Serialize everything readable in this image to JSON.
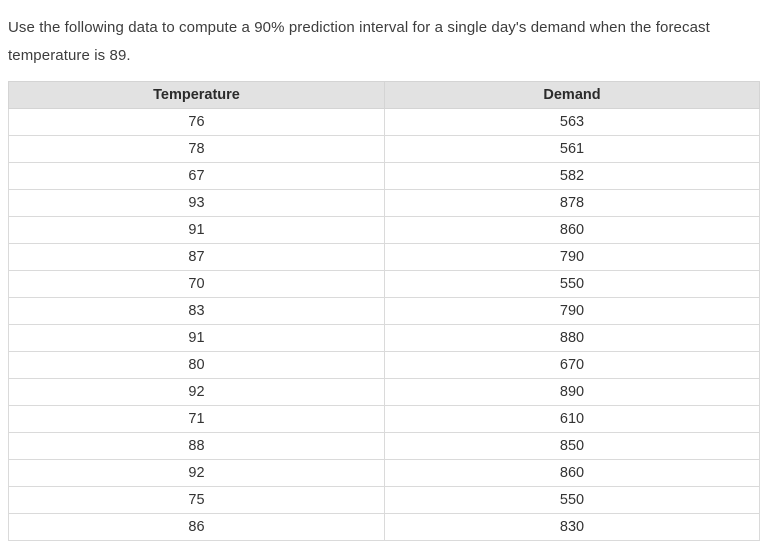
{
  "question": {
    "text": "Use the following data to compute a 90% prediction interval for a single day's demand when the forecast temperature is 89.",
    "prediction_interval_confidence": "90%",
    "forecast_temperature": "89"
  },
  "table": {
    "columns": [
      "Temperature",
      "Demand"
    ],
    "rows": [
      [
        76,
        563
      ],
      [
        78,
        561
      ],
      [
        67,
        582
      ],
      [
        93,
        878
      ],
      [
        91,
        860
      ],
      [
        87,
        790
      ],
      [
        70,
        550
      ],
      [
        83,
        790
      ],
      [
        91,
        880
      ],
      [
        80,
        670
      ],
      [
        92,
        890
      ],
      [
        71,
        610
      ],
      [
        88,
        850
      ],
      [
        92,
        860
      ],
      [
        75,
        550
      ],
      [
        86,
        830
      ]
    ]
  },
  "colors": {
    "header_background": "#e2e2e2",
    "border": "#dadada",
    "text": "#3d3d3d"
  }
}
